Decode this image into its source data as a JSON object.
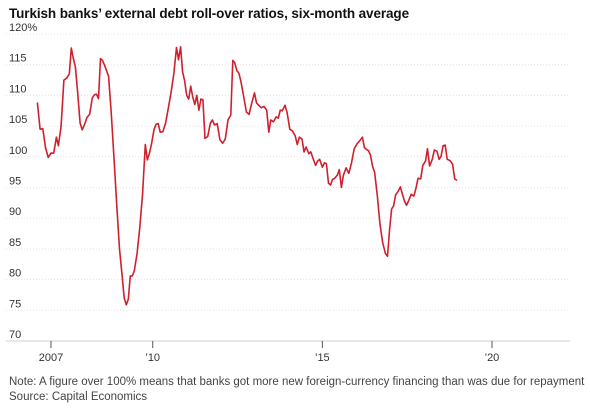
{
  "chart_data": {
    "type": "line",
    "title": "Turkish banks’ external debt roll-over ratios, six-month average",
    "xlabel": "",
    "ylabel": "",
    "ylim": [
      70,
      120
    ],
    "xlim": [
      2006.5,
      2022.3
    ],
    "y_ticks": [
      "120%",
      "115",
      "110",
      "105",
      "100",
      "95",
      "90",
      "85",
      "80",
      "75",
      "70"
    ],
    "y_tick_values": [
      120,
      115,
      110,
      105,
      100,
      95,
      90,
      85,
      80,
      75,
      70
    ],
    "x_ticks": [
      {
        "label": "2007",
        "value": 2007
      },
      {
        "label": "’10",
        "value": 2010
      },
      {
        "label": "’15",
        "value": 2015
      },
      {
        "label": "’20",
        "value": 2020
      }
    ],
    "grid": true,
    "line_color": "#d0202e",
    "series": [
      {
        "points": [
          [
            2006.6,
            108.8
          ],
          [
            2006.68,
            104.5
          ],
          [
            2006.76,
            104.6
          ],
          [
            2006.84,
            101.5
          ],
          [
            2006.92,
            99.9
          ],
          [
            2007.0,
            100.6
          ],
          [
            2007.08,
            100.6
          ],
          [
            2007.16,
            103.2
          ],
          [
            2007.22,
            101.8
          ],
          [
            2007.3,
            105.0
          ],
          [
            2007.38,
            112.5
          ],
          [
            2007.46,
            112.8
          ],
          [
            2007.54,
            113.5
          ],
          [
            2007.6,
            117.7
          ],
          [
            2007.66,
            116.0
          ],
          [
            2007.72,
            114.6
          ],
          [
            2007.78,
            111.0
          ],
          [
            2007.86,
            105.5
          ],
          [
            2007.92,
            104.4
          ],
          [
            2008.0,
            105.4
          ],
          [
            2008.06,
            106.4
          ],
          [
            2008.14,
            106.9
          ],
          [
            2008.22,
            109.6
          ],
          [
            2008.28,
            110.1
          ],
          [
            2008.34,
            110.2
          ],
          [
            2008.4,
            109.5
          ],
          [
            2008.46,
            116.0
          ],
          [
            2008.52,
            115.7
          ],
          [
            2008.58,
            114.9
          ],
          [
            2008.64,
            114.0
          ],
          [
            2008.7,
            113.1
          ],
          [
            2008.78,
            107.0
          ],
          [
            2008.86,
            99.5
          ],
          [
            2008.94,
            92.0
          ],
          [
            2009.02,
            85.0
          ],
          [
            2009.1,
            80.5
          ],
          [
            2009.16,
            77.0
          ],
          [
            2009.22,
            75.9
          ],
          [
            2009.28,
            76.8
          ],
          [
            2009.34,
            80.6
          ],
          [
            2009.4,
            80.6
          ],
          [
            2009.46,
            81.5
          ],
          [
            2009.54,
            84.3
          ],
          [
            2009.62,
            88.5
          ],
          [
            2009.7,
            94.0
          ],
          [
            2009.78,
            102.0
          ],
          [
            2009.84,
            99.5
          ],
          [
            2009.9,
            100.5
          ],
          [
            2009.96,
            102.0
          ],
          [
            2010.04,
            104.5
          ],
          [
            2010.1,
            105.3
          ],
          [
            2010.16,
            105.4
          ],
          [
            2010.22,
            104.0
          ],
          [
            2010.3,
            104.1
          ],
          [
            2010.38,
            105.5
          ],
          [
            2010.46,
            107.9
          ],
          [
            2010.54,
            110.5
          ],
          [
            2010.62,
            113.5
          ],
          [
            2010.7,
            117.8
          ],
          [
            2010.76,
            115.8
          ],
          [
            2010.82,
            117.9
          ],
          [
            2010.88,
            113.8
          ],
          [
            2010.94,
            112.4
          ],
          [
            2011.0,
            110.0
          ],
          [
            2011.06,
            109.4
          ],
          [
            2011.12,
            111.5
          ],
          [
            2011.18,
            109.7
          ],
          [
            2011.24,
            108.5
          ],
          [
            2011.3,
            110.0
          ],
          [
            2011.36,
            107.6
          ],
          [
            2011.42,
            109.4
          ],
          [
            2011.48,
            109.3
          ],
          [
            2011.54,
            103.0
          ],
          [
            2011.62,
            103.3
          ],
          [
            2011.7,
            105.5
          ],
          [
            2011.76,
            106.0
          ],
          [
            2011.82,
            105.2
          ],
          [
            2011.9,
            105.4
          ],
          [
            2011.98,
            102.8
          ],
          [
            2012.06,
            102.2
          ],
          [
            2012.14,
            102.9
          ],
          [
            2012.22,
            106.0
          ],
          [
            2012.3,
            106.8
          ],
          [
            2012.36,
            115.7
          ],
          [
            2012.42,
            115.3
          ],
          [
            2012.48,
            114.0
          ],
          [
            2012.54,
            113.6
          ],
          [
            2012.6,
            112.3
          ],
          [
            2012.68,
            109.8
          ],
          [
            2012.76,
            107.3
          ],
          [
            2012.84,
            106.9
          ],
          [
            2012.92,
            108.8
          ],
          [
            2013.0,
            110.4
          ],
          [
            2013.06,
            108.8
          ],
          [
            2013.12,
            108.4
          ],
          [
            2013.2,
            108.0
          ],
          [
            2013.28,
            108.2
          ],
          [
            2013.36,
            107.6
          ],
          [
            2013.42,
            104.0
          ],
          [
            2013.48,
            106.0
          ],
          [
            2013.56,
            105.7
          ],
          [
            2013.64,
            106.5
          ],
          [
            2013.7,
            106.3
          ],
          [
            2013.76,
            107.6
          ],
          [
            2013.82,
            107.5
          ],
          [
            2013.9,
            108.4
          ],
          [
            2013.96,
            107.2
          ],
          [
            2014.04,
            104.5
          ],
          [
            2014.12,
            104.2
          ],
          [
            2014.2,
            103.4
          ],
          [
            2014.26,
            102.0
          ],
          [
            2014.32,
            103.2
          ],
          [
            2014.4,
            102.9
          ],
          [
            2014.46,
            100.8
          ],
          [
            2014.52,
            101.6
          ],
          [
            2014.6,
            100.5
          ],
          [
            2014.66,
            100.8
          ],
          [
            2014.72,
            99.8
          ],
          [
            2014.8,
            98.6
          ],
          [
            2014.86,
            99.3
          ],
          [
            2014.92,
            99.6
          ],
          [
            2015.0,
            98.3
          ],
          [
            2015.06,
            99.0
          ],
          [
            2015.12,
            98.9
          ],
          [
            2015.18,
            95.7
          ],
          [
            2015.24,
            95.4
          ],
          [
            2015.3,
            96.3
          ],
          [
            2015.36,
            96.5
          ],
          [
            2015.44,
            97.0
          ],
          [
            2015.5,
            97.9
          ],
          [
            2015.56,
            95.0
          ],
          [
            2015.62,
            97.0
          ],
          [
            2015.7,
            98.2
          ],
          [
            2015.78,
            97.3
          ],
          [
            2015.86,
            99.0
          ],
          [
            2015.94,
            101.3
          ],
          [
            2016.02,
            102.1
          ],
          [
            2016.1,
            102.6
          ],
          [
            2016.18,
            103.2
          ],
          [
            2016.24,
            101.5
          ],
          [
            2016.3,
            101.2
          ],
          [
            2016.36,
            101.0
          ],
          [
            2016.42,
            100.3
          ],
          [
            2016.48,
            98.4
          ],
          [
            2016.54,
            97.5
          ],
          [
            2016.62,
            93.7
          ],
          [
            2016.7,
            89.0
          ],
          [
            2016.78,
            86.0
          ],
          [
            2016.86,
            84.2
          ],
          [
            2016.92,
            83.8
          ],
          [
            2016.98,
            88.0
          ],
          [
            2017.04,
            91.5
          ],
          [
            2017.1,
            92.0
          ],
          [
            2017.16,
            93.8
          ],
          [
            2017.24,
            94.4
          ],
          [
            2017.3,
            95.1
          ],
          [
            2017.36,
            93.9
          ],
          [
            2017.42,
            92.8
          ],
          [
            2017.48,
            92.1
          ],
          [
            2017.54,
            92.8
          ],
          [
            2017.62,
            93.9
          ],
          [
            2017.7,
            93.6
          ],
          [
            2017.76,
            94.9
          ],
          [
            2017.82,
            96.5
          ],
          [
            2017.9,
            96.4
          ],
          [
            2017.96,
            98.6
          ],
          [
            2018.04,
            99.3
          ],
          [
            2018.1,
            101.3
          ],
          [
            2018.16,
            98.5
          ],
          [
            2018.24,
            99.6
          ],
          [
            2018.3,
            101.1
          ],
          [
            2018.38,
            100.9
          ],
          [
            2018.44,
            99.6
          ],
          [
            2018.5,
            100.1
          ],
          [
            2018.56,
            101.8
          ],
          [
            2018.62,
            101.9
          ],
          [
            2018.68,
            99.6
          ],
          [
            2018.76,
            99.4
          ],
          [
            2018.84,
            98.8
          ],
          [
            2018.9,
            96.4
          ],
          [
            2018.96,
            96.2
          ]
        ]
      }
    ]
  },
  "note_text": "Note: A figure over 100% means that banks got more new foreign-currency financing than was due for repayment",
  "source_text": "Source: Capital Economics"
}
